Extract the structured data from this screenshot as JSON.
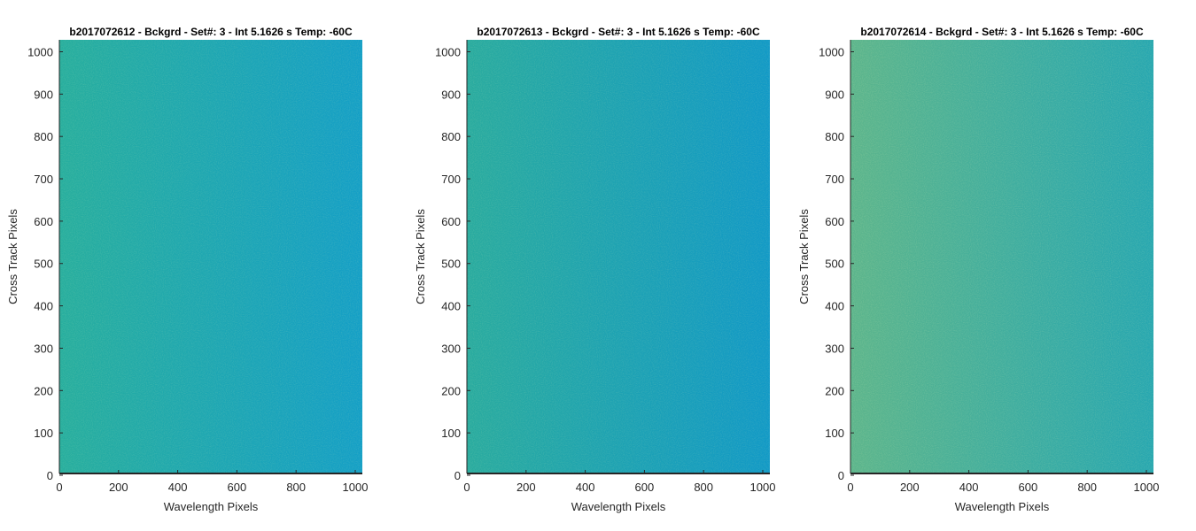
{
  "chart_data": [
    {
      "type": "heatmap",
      "title": "b2017072612 - Bckgrd - Set#: 3 - Int 5.1626 s Temp: -60C",
      "xlabel": "Wavelength Pixels",
      "ylabel": "Cross Track Pixels",
      "xlim": [
        0,
        1024
      ],
      "ylim": [
        0,
        1024
      ],
      "xticks": [
        0,
        200,
        400,
        600,
        800,
        1000
      ],
      "yticks": [
        0,
        100,
        200,
        300,
        400,
        500,
        600,
        700,
        800,
        900,
        1000
      ],
      "color_left": "#27ae9e",
      "color_right": "#149fc6"
    },
    {
      "type": "heatmap",
      "title": "b2017072613 - Bckgrd - Set#: 3 - Int 5.1626 s Temp: -60C",
      "xlabel": "Wavelength Pixels",
      "ylabel": "Cross Track Pixels",
      "xlim": [
        0,
        1024
      ],
      "ylim": [
        0,
        1024
      ],
      "xticks": [
        0,
        200,
        400,
        600,
        800,
        1000
      ],
      "yticks": [
        0,
        100,
        200,
        300,
        400,
        500,
        600,
        700,
        800,
        900,
        1000
      ],
      "color_left": "#29ab9f",
      "color_right": "#1199c6"
    },
    {
      "type": "heatmap",
      "title": "b2017072614 - Bckgrd - Set#: 3 - Int 5.1626 s Temp: -60C",
      "xlabel": "Wavelength Pixels",
      "ylabel": "Cross Track Pixels",
      "xlim": [
        0,
        1024
      ],
      "ylim": [
        0,
        1024
      ],
      "xticks": [
        0,
        200,
        400,
        600,
        800,
        1000
      ],
      "yticks": [
        0,
        100,
        200,
        300,
        400,
        500,
        600,
        700,
        800,
        900,
        1000
      ],
      "color_left": "#5cb58c",
      "color_right": "#27a7b0"
    }
  ]
}
